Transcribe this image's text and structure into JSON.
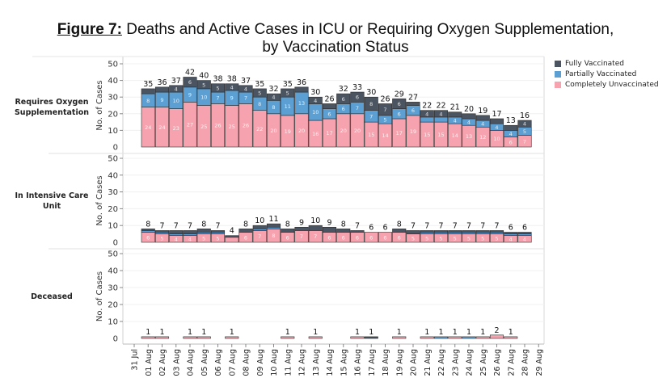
{
  "title": {
    "figure_label": "Figure 7:",
    "line1": " Deaths and Active Cases in ICU or Requiring Oxygen Supplementation,",
    "line2": "by Vaccination Status"
  },
  "colors": {
    "fully": "#4b5461",
    "partial": "#5b9fd3",
    "unvax": "#f7a3af"
  },
  "legend": [
    {
      "key": "fully",
      "label": "Fully Vaccinated"
    },
    {
      "key": "partial",
      "label": "Partially Vaccinated"
    },
    {
      "key": "unvax",
      "label": "Completely Unvaccinated"
    }
  ],
  "chart_data": {
    "type": "bar",
    "stacked": true,
    "title": "Figure 7: Deaths and Active Cases in ICU or Requiring Oxygen Supplementation, by Vaccination Status",
    "ylabel": "No. of Cases",
    "ylim": [
      0,
      50
    ],
    "yticks": [
      0,
      10,
      20,
      30,
      40,
      50
    ],
    "legend_position": "top-right",
    "categories": [
      "31 Jul",
      "01 Aug",
      "02 Aug",
      "03 Aug",
      "04 Aug",
      "05 Aug",
      "06 Aug",
      "07 Aug",
      "08 Aug",
      "09 Aug",
      "10 Aug",
      "11 Aug",
      "12 Aug",
      "13 Aug",
      "14 Aug",
      "15 Aug",
      "16 Aug",
      "17 Aug",
      "18 Aug",
      "19 Aug",
      "20 Aug",
      "21 Aug",
      "22 Aug",
      "23 Aug",
      "24 Aug",
      "25 Aug",
      "26 Aug",
      "27 Aug",
      "28 Aug",
      "29 Aug"
    ],
    "panels": [
      {
        "name": "Requires Oxygen Supplementation",
        "totals": [
          null,
          35,
          36,
          37,
          42,
          40,
          38,
          38,
          37,
          35,
          32,
          35,
          36,
          30,
          26,
          32,
          33,
          30,
          26,
          29,
          27,
          22,
          22,
          21,
          20,
          19,
          17,
          13,
          16,
          null
        ],
        "series": [
          {
            "name": "Completely Unvaccinated",
            "key": "unvax",
            "values": [
              0,
              24,
              24,
              23,
              27,
              25,
              26,
              25,
              26,
              22,
              20,
              19,
              20,
              16,
              17,
              20,
              20,
              15,
              14,
              17,
              19,
              15,
              15,
              14,
              13,
              12,
              10,
              6,
              7,
              0
            ]
          },
          {
            "name": "Partially Vaccinated",
            "key": "partial",
            "values": [
              0,
              8,
              9,
              10,
              9,
              10,
              7,
              9,
              7,
              8,
              8,
              11,
              13,
              10,
              6,
              6,
              7,
              7,
              5,
              6,
              6,
              3,
              3,
              4,
              4,
              4,
              4,
              4,
              5,
              0
            ]
          },
          {
            "name": "Fully Vaccinated",
            "key": "fully",
            "values": [
              0,
              3,
              3,
              4,
              6,
              5,
              5,
              4,
              4,
              5,
              4,
              5,
              3,
              4,
              3,
              6,
              6,
              8,
              7,
              6,
              2,
              4,
              4,
              3,
              3,
              3,
              3,
              3,
              4,
              0
            ]
          }
        ]
      },
      {
        "name": "In Intensive Care Unit",
        "totals": [
          null,
          8,
          7,
          7,
          7,
          8,
          7,
          4,
          8,
          10,
          11,
          8,
          9,
          10,
          9,
          8,
          7,
          6,
          6,
          8,
          7,
          7,
          7,
          7,
          7,
          7,
          7,
          6,
          6,
          null
        ],
        "series": [
          {
            "name": "Completely Unvaccinated",
            "key": "unvax",
            "values": [
              0,
              6,
              5,
              4,
              4,
              5,
              5,
              3,
              6,
              7,
              8,
              6,
              7,
              7,
              6,
              6,
              6,
              6,
              6,
              6,
              5,
              5,
              5,
              5,
              5,
              5,
              5,
              4,
              4,
              0
            ]
          },
          {
            "name": "Partially Vaccinated",
            "key": "partial",
            "values": [
              0,
              1,
              1,
              1,
              1,
              1,
              1,
              0,
              0,
              1,
              1,
              0,
              0,
              0,
              0,
              0,
              0,
              0,
              0,
              0,
              0,
              1,
              1,
              1,
              1,
              1,
              1,
              1,
              1,
              0
            ]
          },
          {
            "name": "Fully Vaccinated",
            "key": "fully",
            "values": [
              0,
              1,
              1,
              2,
              2,
              2,
              1,
              1,
              2,
              2,
              2,
              2,
              2,
              3,
              3,
              2,
              1,
              0,
              0,
              2,
              2,
              1,
              1,
              1,
              1,
              1,
              1,
              1,
              1,
              0
            ]
          }
        ]
      },
      {
        "name": "Deceased",
        "totals": [
          null,
          1,
          1,
          null,
          1,
          1,
          null,
          1,
          null,
          null,
          null,
          1,
          null,
          1,
          null,
          null,
          1,
          1,
          null,
          1,
          null,
          1,
          1,
          1,
          1,
          1,
          2,
          1,
          null,
          null
        ],
        "series": [
          {
            "name": "Completely Unvaccinated",
            "key": "unvax",
            "values": [
              0,
              1,
              1,
              0,
              1,
              1,
              0,
              1,
              0,
              0,
              0,
              1,
              0,
              1,
              0,
              0,
              1,
              0,
              0,
              1,
              0,
              1,
              0,
              1,
              0,
              1,
              2,
              1,
              0,
              0
            ]
          },
          {
            "name": "Partially Vaccinated",
            "key": "partial",
            "values": [
              0,
              0,
              0,
              0,
              0,
              0,
              0,
              0,
              0,
              0,
              0,
              0,
              0,
              0,
              0,
              0,
              0,
              0,
              0,
              0,
              0,
              0,
              1,
              0,
              1,
              0,
              0,
              0,
              0,
              0
            ]
          },
          {
            "name": "Fully Vaccinated",
            "key": "fully",
            "values": [
              0,
              0,
              0,
              0,
              0,
              0,
              0,
              0,
              0,
              0,
              0,
              0,
              0,
              0,
              0,
              0,
              0,
              1,
              0,
              0,
              0,
              0,
              0,
              0,
              0,
              0,
              0,
              0,
              0,
              0
            ]
          }
        ]
      }
    ]
  },
  "row_labels": [
    {
      "line1": "Requires Oxygen",
      "line2": "Supplementation"
    },
    {
      "line1": "In Intensive Care",
      "line2": "Unit"
    },
    {
      "line1": "Deceased",
      "line2": ""
    }
  ]
}
